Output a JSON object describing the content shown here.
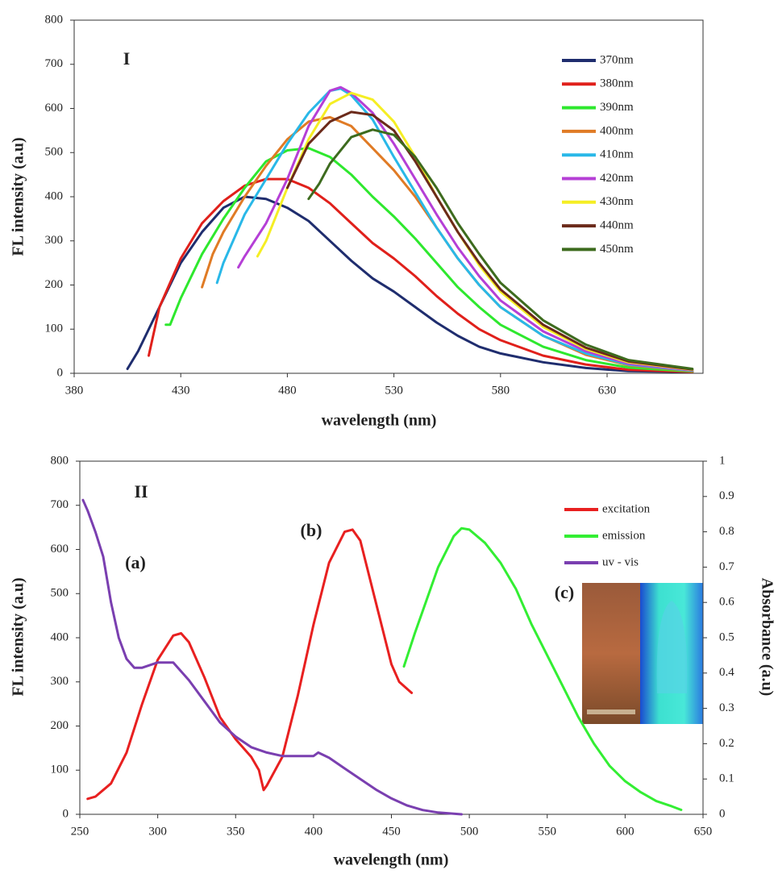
{
  "chart_data": [
    {
      "type": "line",
      "xlabel": "wavelength (nm)",
      "ylabel": "FL intensity (a.u)",
      "xlim": [
        380,
        675
      ],
      "ylim": [
        0,
        800
      ],
      "xticks": [
        380,
        430,
        480,
        530,
        580,
        630
      ],
      "yticks": [
        0,
        100,
        200,
        300,
        400,
        500,
        600,
        700,
        800
      ],
      "grid": false,
      "legend": "upper right",
      "annotations": [
        {
          "text": "I",
          "color": "#d03a2a"
        }
      ],
      "series": [
        {
          "name": "370nm",
          "color": "#1f2d6e",
          "x": [
            405,
            410,
            420,
            430,
            440,
            450,
            460,
            470,
            480,
            490,
            500,
            510,
            520,
            530,
            540,
            550,
            560,
            570,
            580,
            600,
            620,
            640,
            670
          ],
          "values": [
            10,
            50,
            150,
            250,
            320,
            375,
            400,
            395,
            375,
            345,
            300,
            255,
            215,
            185,
            150,
            115,
            85,
            60,
            45,
            25,
            12,
            5,
            3
          ]
        },
        {
          "name": "380nm",
          "color": "#e0201b",
          "x": [
            415,
            420,
            430,
            440,
            450,
            460,
            470,
            480,
            490,
            500,
            510,
            520,
            530,
            540,
            550,
            560,
            570,
            580,
            600,
            620,
            640,
            670
          ],
          "values": [
            40,
            150,
            260,
            340,
            390,
            425,
            440,
            440,
            420,
            385,
            340,
            295,
            260,
            220,
            175,
            135,
            100,
            75,
            40,
            20,
            8,
            3
          ]
        },
        {
          "name": "390nm",
          "color": "#2ee82e",
          "x": [
            423,
            425,
            430,
            440,
            450,
            460,
            470,
            480,
            490,
            500,
            510,
            520,
            530,
            540,
            550,
            560,
            570,
            580,
            600,
            620,
            640,
            670
          ],
          "values": [
            110,
            110,
            170,
            270,
            350,
            420,
            480,
            505,
            510,
            490,
            450,
            400,
            355,
            305,
            250,
            195,
            150,
            110,
            60,
            30,
            13,
            4
          ]
        },
        {
          "name": "400nm",
          "color": "#e07b25",
          "x": [
            440,
            445,
            450,
            460,
            470,
            480,
            490,
            500,
            510,
            520,
            530,
            540,
            550,
            560,
            570,
            580,
            600,
            620,
            640,
            670
          ],
          "values": [
            195,
            270,
            320,
            400,
            470,
            530,
            570,
            580,
            560,
            510,
            460,
            400,
            330,
            260,
            200,
            150,
            85,
            42,
            18,
            5
          ]
        },
        {
          "name": "410nm",
          "color": "#29b8e8",
          "x": [
            447,
            450,
            460,
            470,
            480,
            490,
            500,
            505,
            510,
            520,
            530,
            540,
            550,
            560,
            570,
            580,
            600,
            620,
            640,
            670
          ],
          "values": [
            205,
            250,
            360,
            440,
            520,
            590,
            640,
            645,
            630,
            575,
            490,
            410,
            330,
            260,
            200,
            150,
            85,
            45,
            20,
            6
          ]
        },
        {
          "name": "420nm",
          "color": "#b53fd6",
          "x": [
            457,
            460,
            470,
            480,
            490,
            500,
            505,
            510,
            520,
            530,
            540,
            550,
            560,
            570,
            580,
            600,
            620,
            640,
            670
          ],
          "values": [
            240,
            265,
            340,
            440,
            560,
            640,
            648,
            635,
            590,
            520,
            440,
            360,
            285,
            220,
            165,
            95,
            50,
            22,
            7
          ]
        },
        {
          "name": "430nm",
          "color": "#f5ee24",
          "x": [
            466,
            470,
            480,
            490,
            500,
            510,
            520,
            530,
            540,
            550,
            560,
            570,
            580,
            600,
            620,
            640,
            670
          ],
          "values": [
            265,
            300,
            420,
            530,
            610,
            635,
            620,
            570,
            490,
            400,
            320,
            245,
            185,
            105,
            55,
            25,
            8
          ]
        },
        {
          "name": "440nm",
          "color": "#6b2a1a",
          "x": [
            480,
            485,
            490,
            500,
            510,
            520,
            530,
            540,
            550,
            560,
            570,
            580,
            600,
            620,
            640,
            670
          ],
          "values": [
            420,
            470,
            520,
            570,
            592,
            585,
            550,
            480,
            400,
            320,
            250,
            190,
            110,
            58,
            27,
            9
          ]
        },
        {
          "name": "450nm",
          "color": "#3d6b1e",
          "x": [
            490,
            495,
            500,
            510,
            520,
            530,
            540,
            550,
            560,
            570,
            580,
            600,
            620,
            640,
            670
          ],
          "values": [
            395,
            430,
            475,
            535,
            552,
            540,
            490,
            420,
            340,
            270,
            205,
            120,
            65,
            30,
            10
          ]
        }
      ]
    },
    {
      "type": "line",
      "xlabel": "wavelength (nm)",
      "ylabel": "FL intensity (a.u)",
      "y2label": "Absorbance (a.u)",
      "xlim": [
        250,
        650
      ],
      "ylim": [
        0,
        800
      ],
      "y2lim": [
        0,
        1
      ],
      "xticks": [
        250,
        300,
        350,
        400,
        450,
        500,
        550,
        600,
        650
      ],
      "yticks": [
        0,
        100,
        200,
        300,
        400,
        500,
        600,
        700,
        800
      ],
      "y2ticks": [
        0,
        0.1,
        0.2,
        0.3,
        0.4,
        0.5,
        0.6,
        0.7,
        0.8,
        0.9,
        1
      ],
      "grid": false,
      "legend": "upper right",
      "annotations": [
        {
          "text": "II",
          "color": "#d03a2a"
        },
        {
          "text": "(a)",
          "color": "#7a3fb0"
        },
        {
          "text": "(b)",
          "color": "#e82020"
        },
        {
          "text": "(c)",
          "color": "#33dd33"
        }
      ],
      "series": [
        {
          "name": "excitation",
          "color": "#e82020",
          "x": [
            255,
            260,
            270,
            280,
            290,
            300,
            310,
            315,
            320,
            330,
            340,
            350,
            360,
            365,
            368,
            370,
            380,
            390,
            400,
            410,
            420,
            425,
            430,
            440,
            450,
            455,
            463
          ],
          "values": [
            35,
            40,
            70,
            140,
            250,
            350,
            405,
            410,
            390,
            310,
            220,
            170,
            130,
            100,
            55,
            65,
            130,
            270,
            430,
            570,
            640,
            645,
            620,
            480,
            340,
            300,
            275
          ]
        },
        {
          "name": "emission",
          "color": "#33ee33",
          "x": [
            458,
            465,
            470,
            480,
            490,
            495,
            500,
            510,
            520,
            530,
            540,
            550,
            560,
            570,
            580,
            590,
            600,
            610,
            620,
            630,
            636
          ],
          "values": [
            335,
            410,
            460,
            560,
            630,
            648,
            645,
            615,
            570,
            510,
            430,
            360,
            290,
            220,
            160,
            110,
            75,
            50,
            30,
            18,
            10
          ]
        },
        {
          "name": "uv - vis",
          "color": "#7a3fb0",
          "axis": "y2",
          "x": [
            252,
            255,
            260,
            265,
            270,
            275,
            280,
            285,
            290,
            300,
            310,
            320,
            330,
            340,
            350,
            360,
            370,
            380,
            390,
            400,
            403,
            410,
            420,
            430,
            440,
            450,
            460,
            470,
            480,
            495
          ],
          "values": [
            0.89,
            0.86,
            0.8,
            0.73,
            0.6,
            0.5,
            0.44,
            0.415,
            0.415,
            0.43,
            0.43,
            0.38,
            0.32,
            0.26,
            0.22,
            0.19,
            0.175,
            0.165,
            0.165,
            0.165,
            0.175,
            0.16,
            0.13,
            0.1,
            0.07,
            0.045,
            0.025,
            0.012,
            0.005,
            0
          ]
        }
      ]
    }
  ]
}
